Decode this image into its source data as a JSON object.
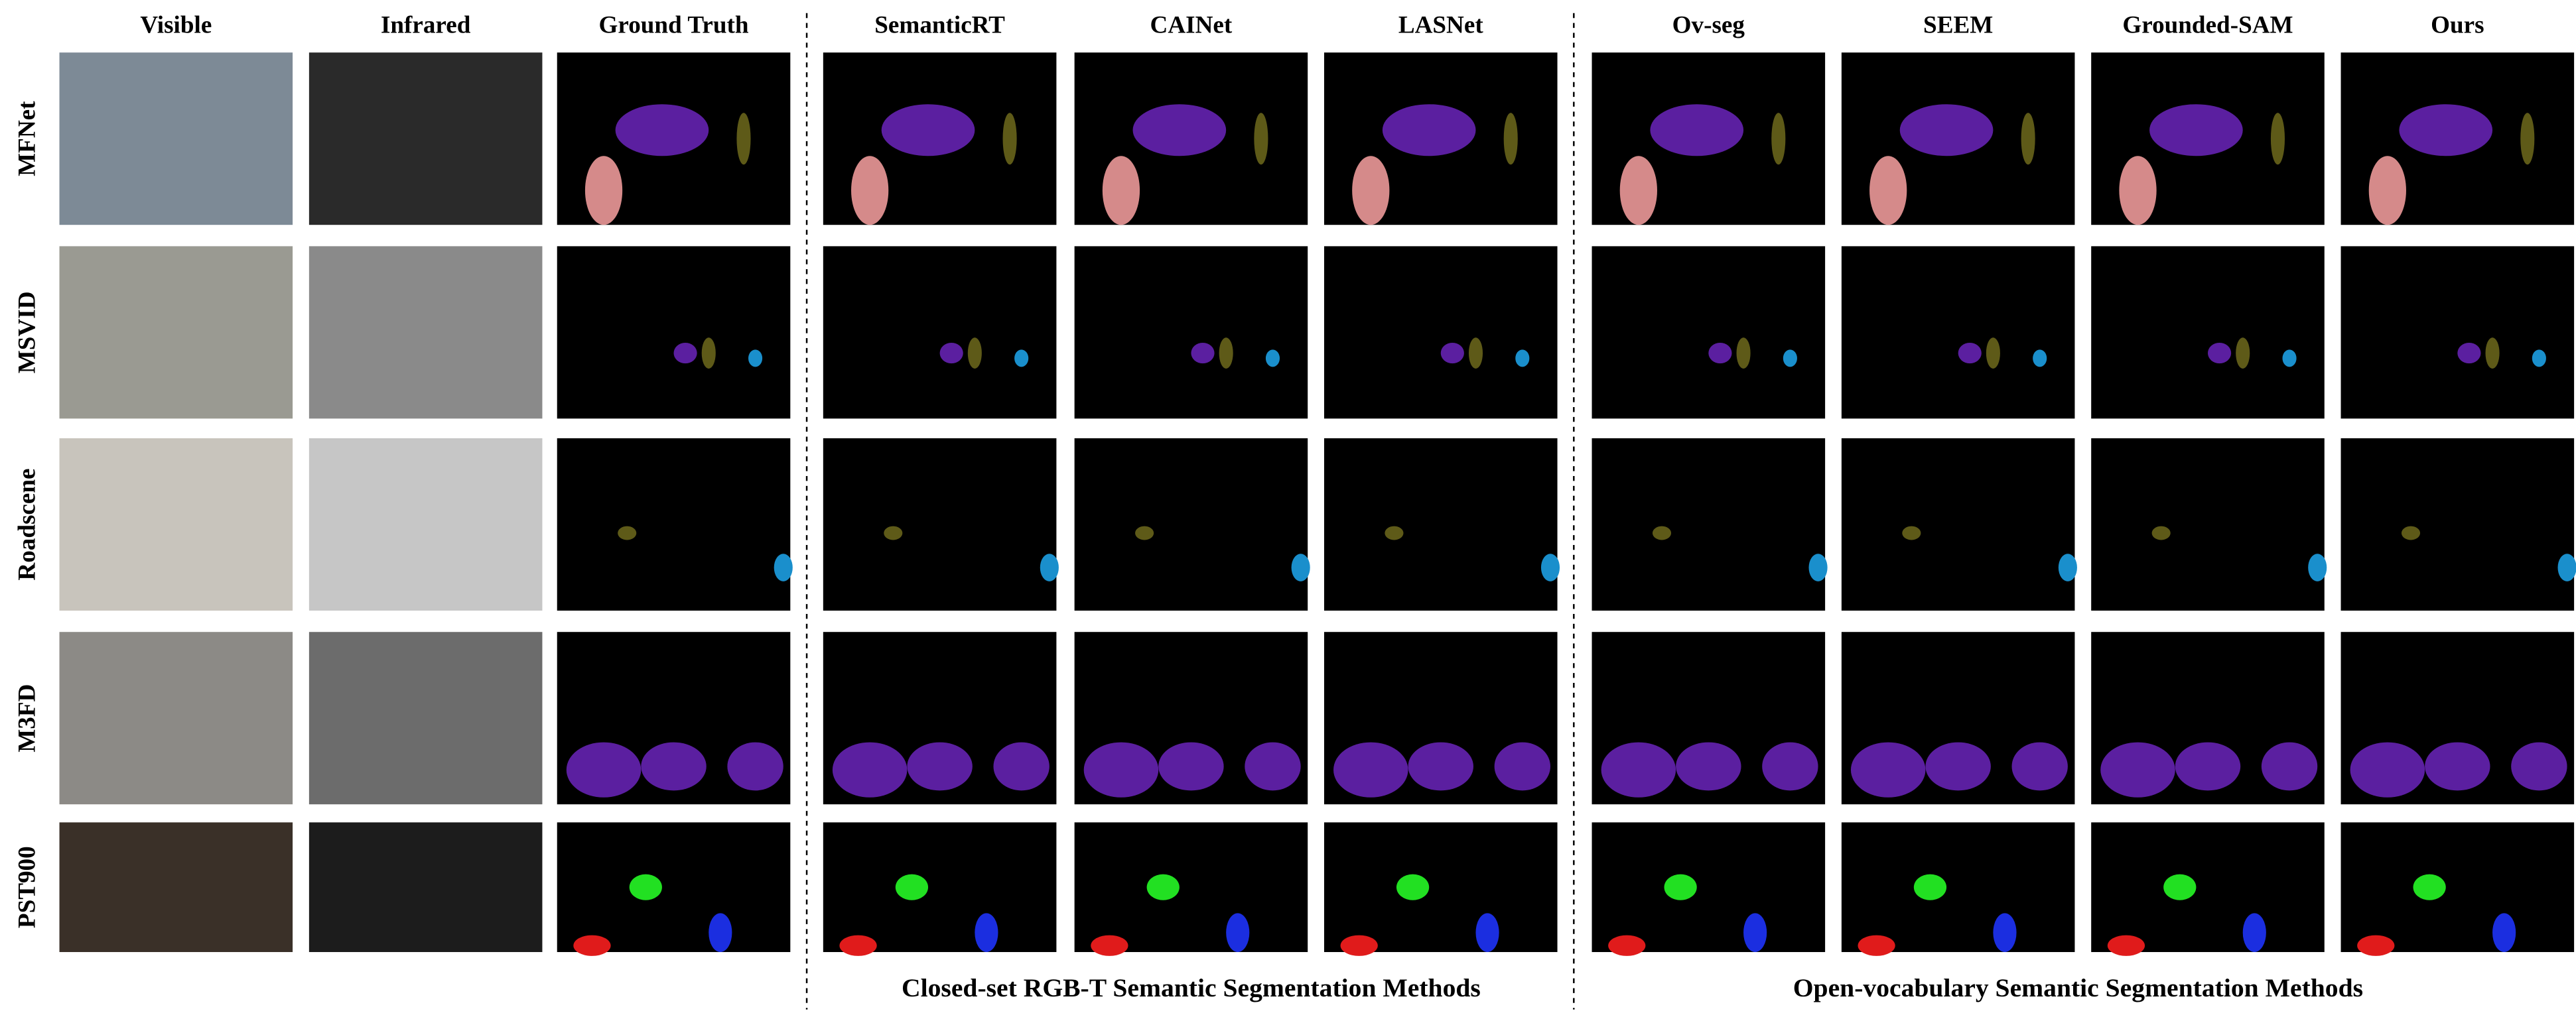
{
  "figure": {
    "columns": [
      "Visible",
      "Infrared",
      "Ground Truth",
      "SemanticRT",
      "CAINet",
      "LASNet",
      "Ov-seg",
      "SEEM",
      "Grounded-SAM",
      "Ours"
    ],
    "rows": [
      "MFNet",
      "MSVID",
      "Roadscene",
      "M3FD",
      "PST900"
    ],
    "group_captions": [
      "Closed-set RGB-T Semantic Segmentation Methods",
      "Open-vocabulary Semantic Segmentation Methods"
    ]
  }
}
